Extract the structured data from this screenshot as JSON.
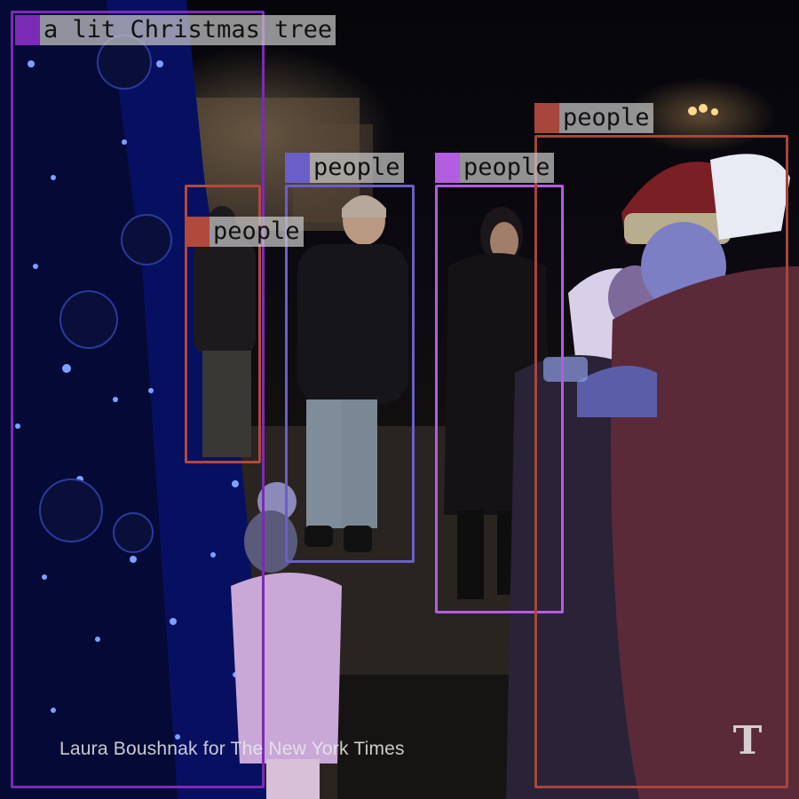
{
  "photo": {
    "description_icon": "night-square-christmas-tree-photo",
    "credit": "Laura Boushnak for The New York Times",
    "logo_glyph": "T",
    "logo_icon": "nyt-logo-icon"
  },
  "detections": [
    {
      "label": "a lit Christmas tree",
      "color": "#7b2bb5"
    },
    {
      "label": "people",
      "color": "#b04a3c"
    },
    {
      "label": "people",
      "color": "#6a5fc9"
    },
    {
      "label": "people",
      "color": "#b35de0"
    },
    {
      "label": "people",
      "color": "#a8453c"
    }
  ]
}
